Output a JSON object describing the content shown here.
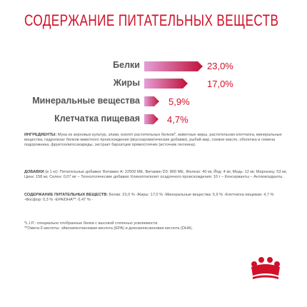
{
  "title": "СОДЕРЖАНИЕ ПИТАТЕЛЬНЫХ ВЕЩЕСТВ",
  "colors": {
    "accent": "#d1112a",
    "bar_dark": "#c0123a",
    "bar_light": "#e4a0d8"
  },
  "nutrients": [
    {
      "label": "Белки",
      "value": "23,0%",
      "percent": 23.0
    },
    {
      "label": "Жиры",
      "value": "17,0%",
      "percent": 17.0
    },
    {
      "label": "Минеральные вещества",
      "value": "5,9%",
      "percent": 5.9
    },
    {
      "label": "Клетчатка пищевая",
      "value": "4,7%",
      "percent": 4.7
    }
  ],
  "ingredients": {
    "heading": "ИНГРЕДИЕНТЫ:",
    "text": "Мука из зерновых культур, злаки, изолят растительных белков*, животные жиры, растительная клетчатка, минеральные вещества, гидролизат белков животного происхождения (вкусоароматические добавки), рыбий жир, соевое масло, оболочка и семена подорожника, фруктоолигосахариды, экстракт бархатцев прямостоячих (источник лютеина)."
  },
  "additives": {
    "heading": "ДОБАВКИ",
    "text": "(в 1 кг): Питательные добавки: Витамин А: 22500 МЕ, Витамин D3: 800 МЕ, Железо: 40 мг, Йод: 4 мг, Медь: 12 мг, Марганец: 53 мг, Цинк: 158 мг, Селен: 0,07 мг – Технологические добавки: Клиноптилолит осадочного происхождения: 10 г – Консерванты – Антиоксиданты."
  },
  "composition": {
    "heading": "СОДЕРЖАНИЕ ПИТАТЕЛЬНЫХ ВЕЩЕСТВ:",
    "text": "Белки: 23,0 % -Жиры: 17,0 % -Минеральные вещества: 5,9 % -Клетчатка пищевая: 4,7 % -Фосфор: 0,3 % -EPA/DHA**: 0,47 % -"
  },
  "footnotes": [
    "*L.I.P.: специально отобранные белки с высокой степенью усвояемости.",
    "**Омега-3 кислоты: эйкозапентаеновая кислота (EPA) и докозагексаеновая кислота (DHA)."
  ]
}
